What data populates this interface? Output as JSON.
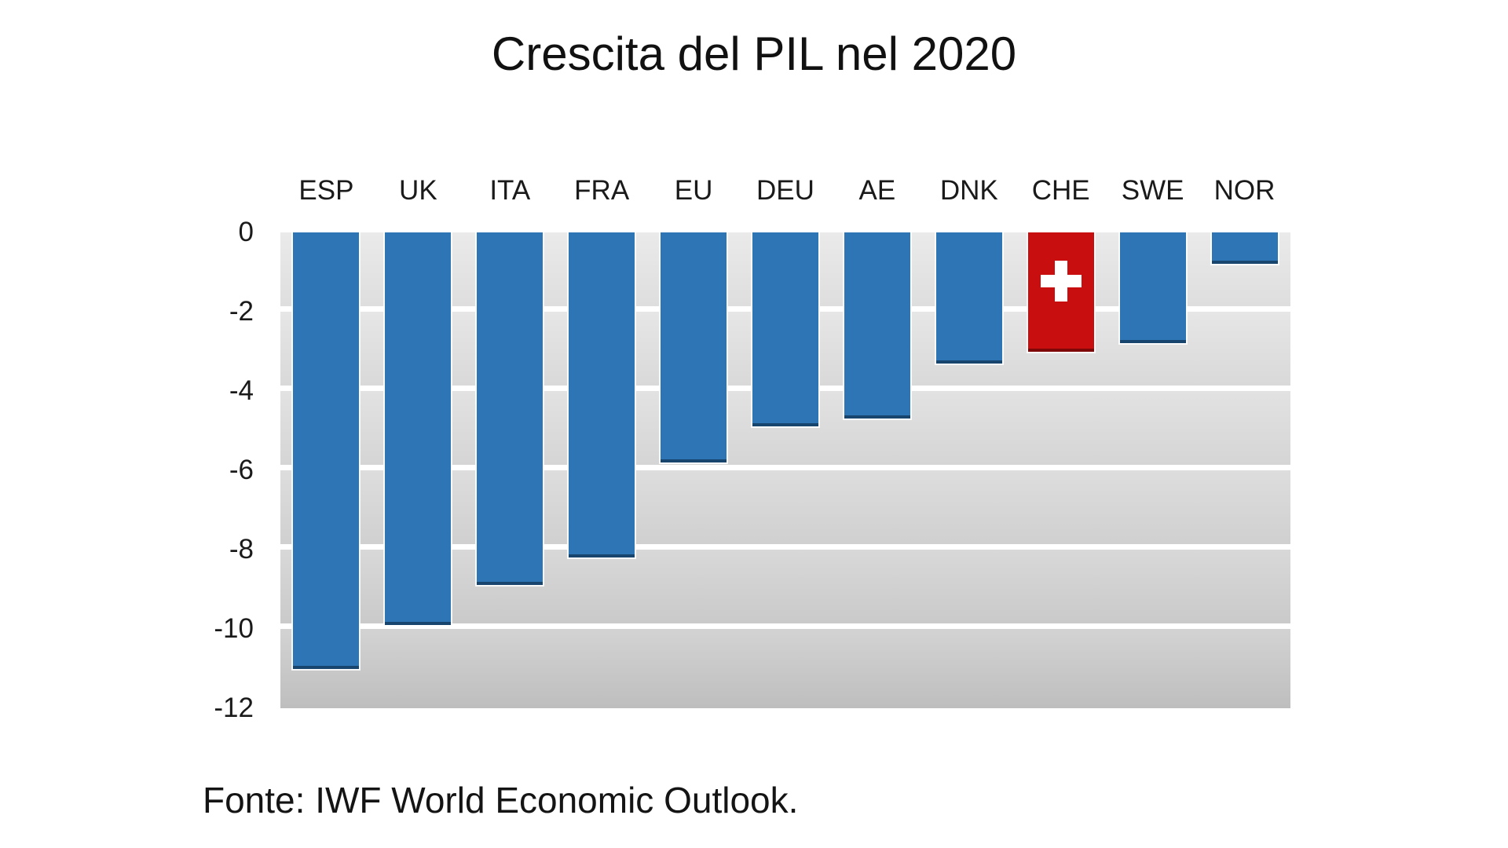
{
  "chart": {
    "title": "Crescita del PIL nel 2020"
  },
  "footer": {
    "source": "Fonte: IWF World Economic Outlook."
  },
  "chart_data": {
    "type": "bar",
    "title": "Crescita del PIL nel 2020",
    "categories": [
      "ESP",
      "UK",
      "ITA",
      "FRA",
      "EU",
      "DEU",
      "AE",
      "DNK",
      "CHE",
      "SWE",
      "NOR"
    ],
    "values": [
      -11.0,
      -9.9,
      -8.9,
      -8.2,
      -5.8,
      -4.9,
      -4.7,
      -3.3,
      -3.0,
      -2.8,
      -0.8
    ],
    "bar_color": "#2e75b6",
    "bar_edge_color": "#17456e",
    "highlight": {
      "category": "CHE",
      "index": 8,
      "color": "#c80e0e",
      "edge_color": "#7e0808",
      "marker": "swiss-cross-icon"
    },
    "xlabel": "",
    "ylabel": "",
    "ylim": [
      -12,
      0
    ],
    "y_ticks": [
      0,
      -2,
      -4,
      -6,
      -8,
      -10,
      -12
    ],
    "grid": "horizontal-white-lines",
    "plot_background": "gray-gradient-bands",
    "legend": "none",
    "source": "Fonte: IWF World Economic Outlook."
  }
}
